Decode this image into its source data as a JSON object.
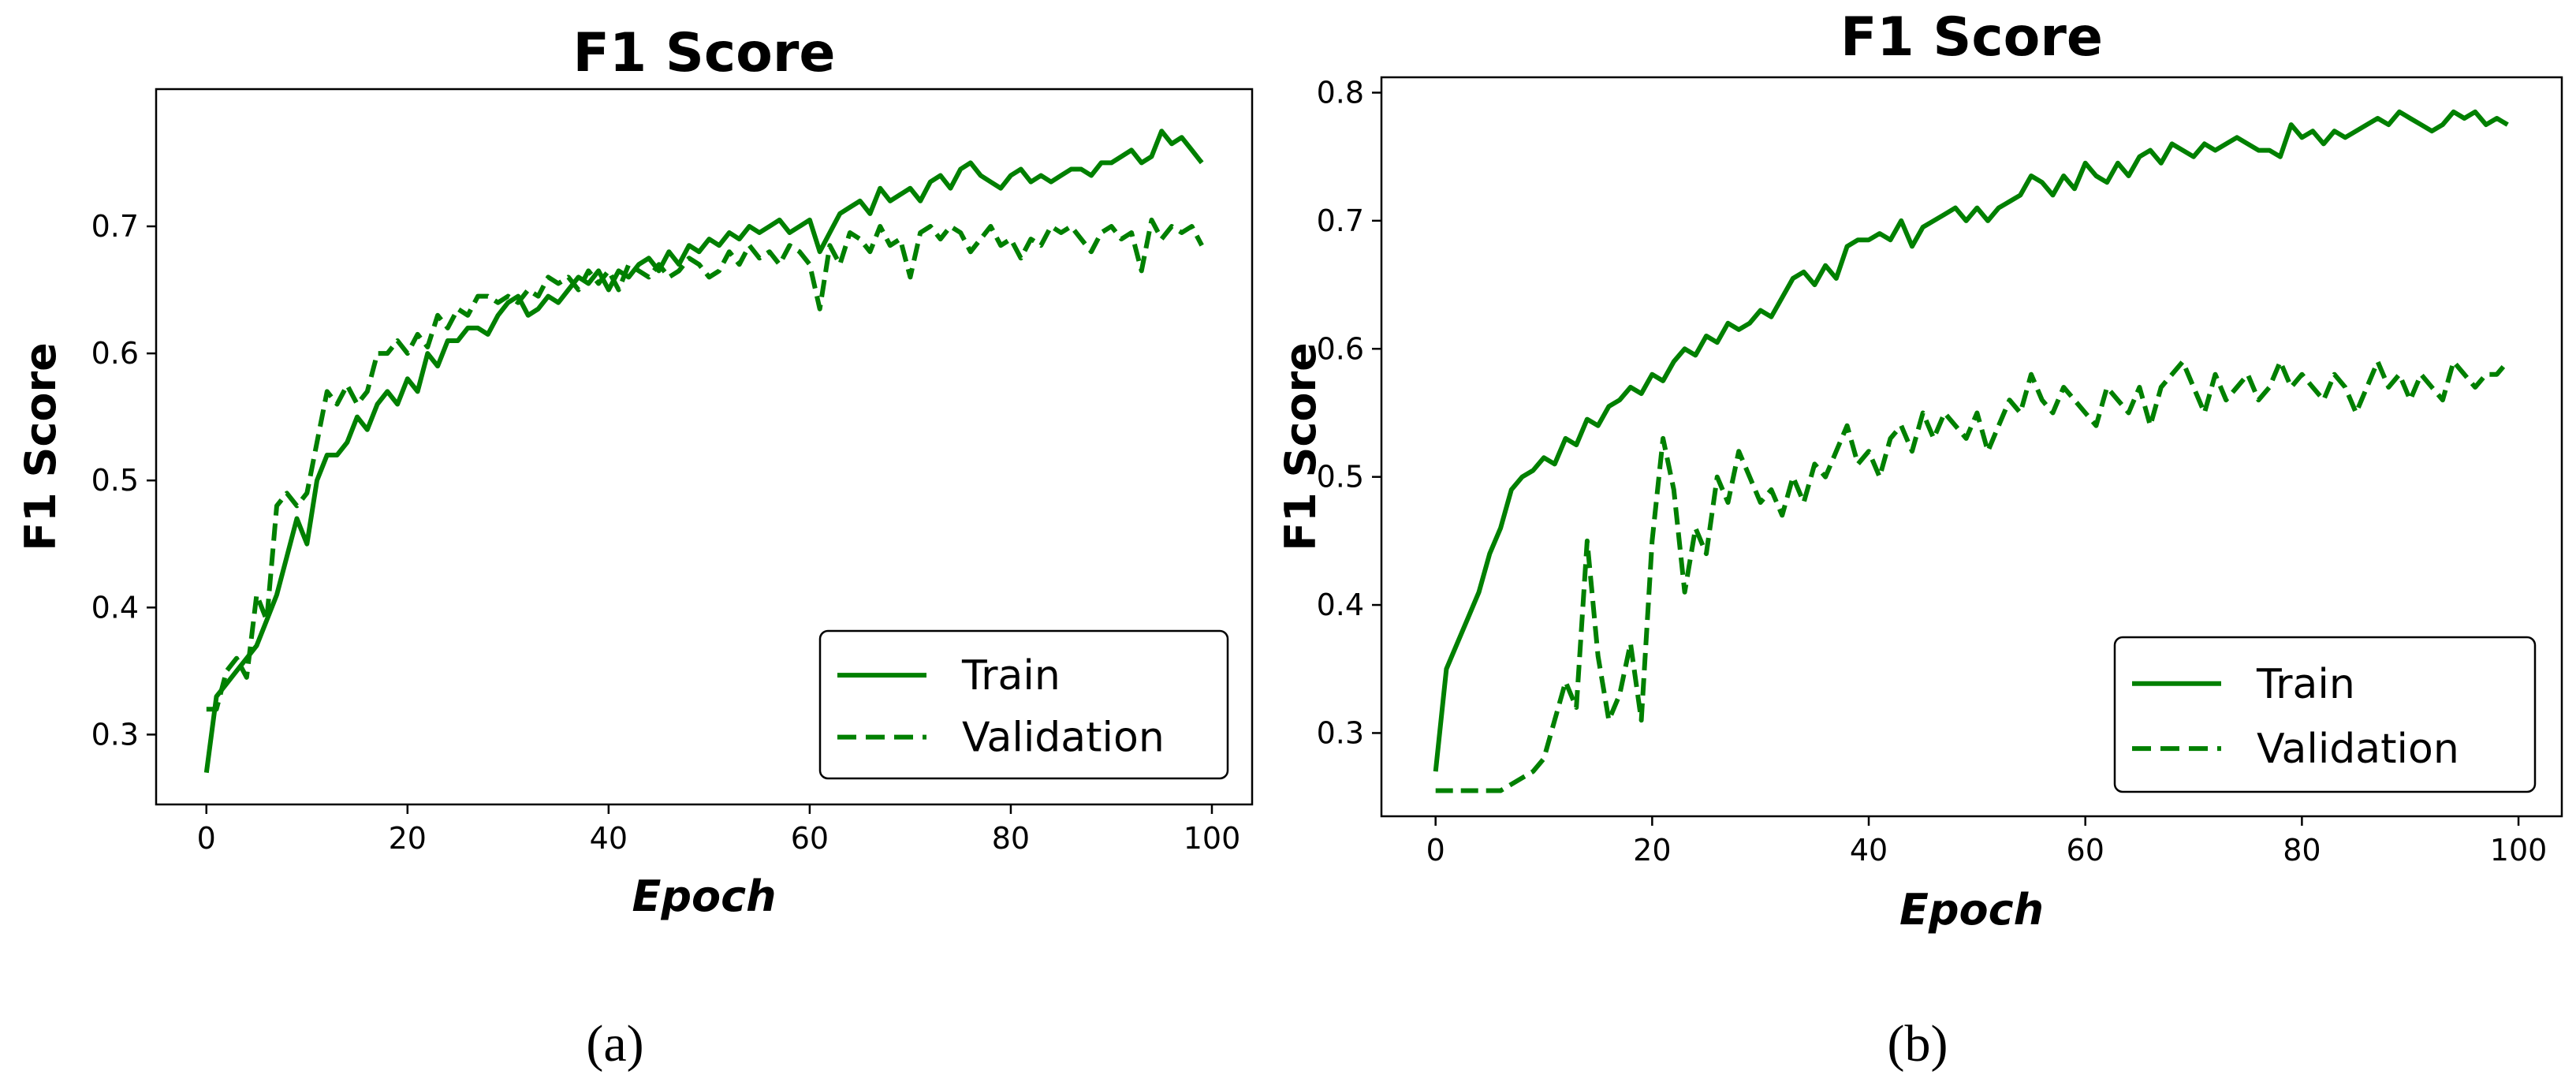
{
  "chart_data": [
    {
      "panel": "(a)",
      "type": "line",
      "title": "F1 Score",
      "xlabel": "Epoch",
      "ylabel": "F1 Score",
      "xlim": [
        -5,
        104
      ],
      "ylim": [
        0.245,
        0.808
      ],
      "xticks": [
        0,
        20,
        40,
        60,
        80,
        100
      ],
      "yticks": [
        0.3,
        0.4,
        0.5,
        0.6,
        0.7
      ],
      "grid": false,
      "legend_position": "lower-right",
      "color": "#008000",
      "series": [
        {
          "name": "Train",
          "style": "solid",
          "x": [
            0,
            1,
            2,
            3,
            4,
            5,
            6,
            7,
            8,
            9,
            10,
            11,
            12,
            13,
            14,
            15,
            16,
            17,
            18,
            19,
            20,
            21,
            22,
            23,
            24,
            25,
            26,
            27,
            28,
            29,
            30,
            31,
            32,
            33,
            34,
            35,
            36,
            37,
            38,
            39,
            40,
            41,
            42,
            43,
            44,
            45,
            46,
            47,
            48,
            49,
            50,
            51,
            52,
            53,
            54,
            55,
            56,
            57,
            58,
            59,
            60,
            61,
            62,
            63,
            64,
            65,
            66,
            67,
            68,
            69,
            70,
            71,
            72,
            73,
            74,
            75,
            76,
            77,
            78,
            79,
            80,
            81,
            82,
            83,
            84,
            85,
            86,
            87,
            88,
            89,
            90,
            91,
            92,
            93,
            94,
            95,
            96,
            97,
            98,
            99
          ],
          "values": [
            0.27,
            0.33,
            0.34,
            0.35,
            0.36,
            0.37,
            0.39,
            0.41,
            0.44,
            0.47,
            0.45,
            0.5,
            0.52,
            0.52,
            0.53,
            0.55,
            0.54,
            0.56,
            0.57,
            0.56,
            0.58,
            0.57,
            0.6,
            0.59,
            0.61,
            0.61,
            0.62,
            0.62,
            0.615,
            0.63,
            0.64,
            0.645,
            0.63,
            0.635,
            0.645,
            0.64,
            0.65,
            0.66,
            0.655,
            0.665,
            0.65,
            0.665,
            0.66,
            0.67,
            0.675,
            0.665,
            0.68,
            0.67,
            0.685,
            0.68,
            0.69,
            0.685,
            0.695,
            0.69,
            0.7,
            0.695,
            0.7,
            0.705,
            0.695,
            0.7,
            0.705,
            0.68,
            0.695,
            0.71,
            0.715,
            0.72,
            0.71,
            0.73,
            0.72,
            0.725,
            0.73,
            0.72,
            0.735,
            0.74,
            0.73,
            0.745,
            0.75,
            0.74,
            0.735,
            0.73,
            0.74,
            0.745,
            0.735,
            0.74,
            0.735,
            0.74,
            0.745,
            0.745,
            0.74,
            0.75,
            0.75,
            0.755,
            0.76,
            0.75,
            0.755,
            0.775,
            0.765,
            0.77,
            0.76,
            0.75
          ]
        },
        {
          "name": "Validation",
          "style": "dashed",
          "x": [
            0,
            1,
            2,
            3,
            4,
            5,
            6,
            7,
            8,
            9,
            10,
            11,
            12,
            13,
            14,
            15,
            16,
            17,
            18,
            19,
            20,
            21,
            22,
            23,
            24,
            25,
            26,
            27,
            28,
            29,
            30,
            31,
            32,
            33,
            34,
            35,
            36,
            37,
            38,
            39,
            40,
            41,
            42,
            43,
            44,
            45,
            46,
            47,
            48,
            49,
            50,
            51,
            52,
            53,
            54,
            55,
            56,
            57,
            58,
            59,
            60,
            61,
            62,
            63,
            64,
            65,
            66,
            67,
            68,
            69,
            70,
            71,
            72,
            73,
            74,
            75,
            76,
            77,
            78,
            79,
            80,
            81,
            82,
            83,
            84,
            85,
            86,
            87,
            88,
            89,
            90,
            91,
            92,
            93,
            94,
            95,
            96,
            97,
            98,
            99
          ],
          "values": [
            0.32,
            0.32,
            0.35,
            0.36,
            0.345,
            0.41,
            0.39,
            0.48,
            0.49,
            0.48,
            0.49,
            0.53,
            0.57,
            0.56,
            0.575,
            0.56,
            0.57,
            0.6,
            0.6,
            0.61,
            0.6,
            0.615,
            0.605,
            0.63,
            0.62,
            0.635,
            0.63,
            0.645,
            0.645,
            0.64,
            0.645,
            0.64,
            0.65,
            0.645,
            0.66,
            0.655,
            0.66,
            0.65,
            0.665,
            0.655,
            0.665,
            0.65,
            0.67,
            0.665,
            0.66,
            0.67,
            0.66,
            0.665,
            0.675,
            0.67,
            0.66,
            0.665,
            0.68,
            0.67,
            0.685,
            0.675,
            0.68,
            0.67,
            0.685,
            0.68,
            0.67,
            0.635,
            0.685,
            0.67,
            0.695,
            0.69,
            0.68,
            0.7,
            0.685,
            0.69,
            0.66,
            0.695,
            0.7,
            0.69,
            0.7,
            0.695,
            0.68,
            0.69,
            0.7,
            0.685,
            0.69,
            0.675,
            0.69,
            0.685,
            0.7,
            0.695,
            0.7,
            0.69,
            0.68,
            0.695,
            0.7,
            0.69,
            0.695,
            0.665,
            0.705,
            0.69,
            0.7,
            0.695,
            0.7,
            0.685
          ]
        }
      ]
    },
    {
      "panel": "(b)",
      "type": "line",
      "title": "F1 Score",
      "xlabel": "Epoch",
      "ylabel": "F1 Score",
      "xlim": [
        -5,
        104
      ],
      "ylim": [
        0.235,
        0.812
      ],
      "xticks": [
        0,
        20,
        40,
        60,
        80,
        100
      ],
      "yticks": [
        0.3,
        0.4,
        0.5,
        0.6,
        0.7,
        0.8
      ],
      "grid": false,
      "legend_position": "lower-right",
      "color": "#008000",
      "series": [
        {
          "name": "Train",
          "style": "solid",
          "x": [
            0,
            1,
            2,
            3,
            4,
            5,
            6,
            7,
            8,
            9,
            10,
            11,
            12,
            13,
            14,
            15,
            16,
            17,
            18,
            19,
            20,
            21,
            22,
            23,
            24,
            25,
            26,
            27,
            28,
            29,
            30,
            31,
            32,
            33,
            34,
            35,
            36,
            37,
            38,
            39,
            40,
            41,
            42,
            43,
            44,
            45,
            46,
            47,
            48,
            49,
            50,
            51,
            52,
            53,
            54,
            55,
            56,
            57,
            58,
            59,
            60,
            61,
            62,
            63,
            64,
            65,
            66,
            67,
            68,
            69,
            70,
            71,
            72,
            73,
            74,
            75,
            76,
            77,
            78,
            79,
            80,
            81,
            82,
            83,
            84,
            85,
            86,
            87,
            88,
            89,
            90,
            91,
            92,
            93,
            94,
            95,
            96,
            97,
            98,
            99
          ],
          "values": [
            0.27,
            0.35,
            0.37,
            0.39,
            0.41,
            0.44,
            0.46,
            0.49,
            0.5,
            0.505,
            0.515,
            0.51,
            0.53,
            0.525,
            0.545,
            0.54,
            0.555,
            0.56,
            0.57,
            0.565,
            0.58,
            0.575,
            0.59,
            0.6,
            0.595,
            0.61,
            0.605,
            0.62,
            0.615,
            0.62,
            0.63,
            0.625,
            0.64,
            0.655,
            0.66,
            0.65,
            0.665,
            0.655,
            0.68,
            0.685,
            0.685,
            0.69,
            0.685,
            0.7,
            0.68,
            0.695,
            0.7,
            0.705,
            0.71,
            0.7,
            0.71,
            0.7,
            0.71,
            0.715,
            0.72,
            0.735,
            0.73,
            0.72,
            0.735,
            0.725,
            0.745,
            0.735,
            0.73,
            0.745,
            0.735,
            0.75,
            0.755,
            0.745,
            0.76,
            0.755,
            0.75,
            0.76,
            0.755,
            0.76,
            0.765,
            0.76,
            0.755,
            0.755,
            0.75,
            0.775,
            0.765,
            0.77,
            0.76,
            0.77,
            0.765,
            0.77,
            0.775,
            0.78,
            0.775,
            0.785,
            0.78,
            0.775,
            0.77,
            0.775,
            0.785,
            0.78,
            0.785,
            0.775,
            0.78,
            0.775
          ]
        },
        {
          "name": "Validation",
          "style": "dashed",
          "x": [
            0,
            1,
            2,
            3,
            4,
            5,
            6,
            7,
            8,
            9,
            10,
            11,
            12,
            13,
            14,
            15,
            16,
            17,
            18,
            19,
            20,
            21,
            22,
            23,
            24,
            25,
            26,
            27,
            28,
            29,
            30,
            31,
            32,
            33,
            34,
            35,
            36,
            37,
            38,
            39,
            40,
            41,
            42,
            43,
            44,
            45,
            46,
            47,
            48,
            49,
            50,
            51,
            52,
            53,
            54,
            55,
            56,
            57,
            58,
            59,
            60,
            61,
            62,
            63,
            64,
            65,
            66,
            67,
            68,
            69,
            70,
            71,
            72,
            73,
            74,
            75,
            76,
            77,
            78,
            79,
            80,
            81,
            82,
            83,
            84,
            85,
            86,
            87,
            88,
            89,
            90,
            91,
            92,
            93,
            94,
            95,
            96,
            97,
            98,
            99
          ],
          "values": [
            0.255,
            0.255,
            0.255,
            0.255,
            0.255,
            0.255,
            0.255,
            0.26,
            0.265,
            0.27,
            0.28,
            0.31,
            0.34,
            0.32,
            0.45,
            0.36,
            0.31,
            0.33,
            0.37,
            0.31,
            0.45,
            0.53,
            0.49,
            0.41,
            0.46,
            0.44,
            0.5,
            0.48,
            0.52,
            0.5,
            0.48,
            0.49,
            0.47,
            0.5,
            0.48,
            0.51,
            0.5,
            0.52,
            0.54,
            0.51,
            0.52,
            0.5,
            0.53,
            0.54,
            0.52,
            0.55,
            0.53,
            0.55,
            0.54,
            0.53,
            0.55,
            0.52,
            0.54,
            0.56,
            0.55,
            0.58,
            0.56,
            0.55,
            0.57,
            0.56,
            0.55,
            0.54,
            0.57,
            0.56,
            0.55,
            0.57,
            0.54,
            0.57,
            0.58,
            0.59,
            0.57,
            0.55,
            0.58,
            0.56,
            0.57,
            0.58,
            0.56,
            0.57,
            0.59,
            0.57,
            0.58,
            0.57,
            0.56,
            0.58,
            0.57,
            0.55,
            0.57,
            0.59,
            0.57,
            0.58,
            0.56,
            0.58,
            0.57,
            0.56,
            0.59,
            0.58,
            0.57,
            0.58,
            0.58,
            0.59
          ]
        }
      ]
    }
  ]
}
